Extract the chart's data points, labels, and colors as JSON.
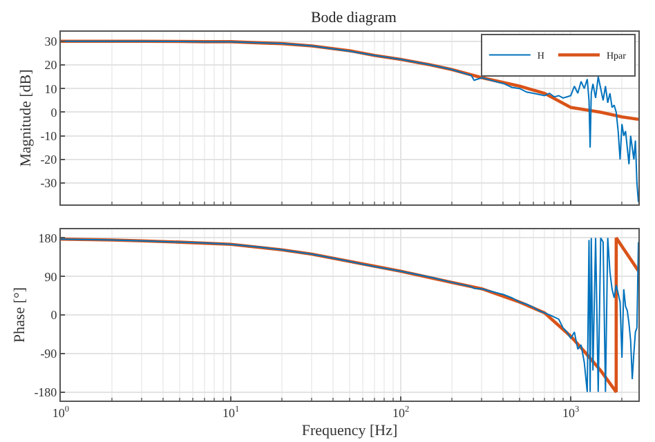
{
  "chart_data": [
    {
      "type": "line",
      "title": "Bode diagram",
      "ylabel": "Magnitude [dB]",
      "xlim": [
        1,
        2500
      ],
      "xticks": [
        {
          "value": 1,
          "label": null
        },
        {
          "value": 10,
          "label": null
        },
        {
          "value": 100,
          "label": null
        },
        {
          "value": 1000,
          "label": null
        }
      ],
      "ylim": [
        -39,
        34
      ],
      "yticks": [
        -30,
        -20,
        -10,
        0,
        10,
        20,
        30
      ],
      "log": "x",
      "grid": true,
      "legend": "top right",
      "tick_labels": "y",
      "marker": "none",
      "line_style": "solid",
      "series": [
        {
          "name": "H",
          "color": "#0072bd",
          "x": [
            1,
            2,
            3,
            5,
            7,
            10,
            15,
            20,
            30,
            50,
            70,
            100,
            150,
            200,
            260,
            270,
            300,
            380,
            400,
            450,
            500,
            550,
            600,
            650,
            700,
            750,
            800,
            850,
            900,
            950,
            1000,
            1050,
            1100,
            1150,
            1200,
            1250,
            1280,
            1300,
            1320,
            1350,
            1400,
            1450,
            1500,
            1550,
            1600,
            1650,
            1700,
            1750,
            1800,
            1850,
            1900,
            1950,
            2000,
            2050,
            2100,
            2150,
            2200,
            2250,
            2300,
            2350,
            2400,
            2450,
            2500
          ],
          "values": [
            30,
            30,
            30,
            29.9,
            29.8,
            29.8,
            29.3,
            29,
            28,
            25.8,
            24,
            22.3,
            20,
            18,
            15.5,
            13.5,
            14.6,
            12.5,
            12.2,
            10.5,
            10,
            8.5,
            8,
            7.5,
            7,
            8,
            6.5,
            7,
            6,
            6.5,
            7,
            11,
            8,
            13,
            10,
            14,
            5,
            -15,
            8,
            12,
            6,
            15,
            10,
            5,
            11,
            4,
            8,
            2,
            3,
            0,
            -8,
            -20,
            -5,
            -10,
            -8,
            -15,
            -22,
            -10,
            -15,
            -20,
            -12,
            -30,
            -38
          ]
        },
        {
          "name": "Hpar",
          "color": "#d95319",
          "x": [
            1,
            2,
            3,
            5,
            7,
            10,
            15,
            20,
            30,
            50,
            70,
            100,
            150,
            200,
            300,
            500,
            700,
            1000,
            1500,
            2000,
            2500
          ],
          "values": [
            30,
            30,
            30,
            29.9,
            29.8,
            29.8,
            29.3,
            29,
            28,
            26,
            24,
            22.3,
            20,
            18,
            14.6,
            11,
            8,
            2,
            0,
            -2,
            -3
          ]
        }
      ]
    },
    {
      "type": "line",
      "xlabel": "Frequency [Hz]",
      "ylabel": "Phase [°]",
      "xlim": [
        1,
        2500
      ],
      "xticks": [
        {
          "value": 1,
          "label": "10$^{0}$"
        },
        {
          "value": 10,
          "label": "10$^{1}$"
        },
        {
          "value": 100,
          "label": "10$^{2}$"
        },
        {
          "value": 1000,
          "label": "10$^{3}$"
        }
      ],
      "ylim": [
        -200,
        200
      ],
      "yticks": [
        -180,
        -90,
        0,
        90,
        180
      ],
      "log": "x",
      "grid": true,
      "legend": false,
      "marker": "none",
      "line_style": "solid",
      "series": [
        {
          "color": "#0072bd",
          "x": [
            1,
            2,
            3,
            5,
            7,
            10,
            15,
            20,
            30,
            50,
            70,
            100,
            150,
            200,
            260,
            270,
            300,
            380,
            400,
            450,
            500,
            550,
            600,
            650,
            700,
            750,
            800,
            850,
            900,
            950,
            1000,
            1050,
            1100,
            1150,
            1200,
            1250,
            1280,
            1300,
            1320,
            1350,
            1400,
            1450,
            1500,
            1550,
            1600,
            1650,
            1700,
            1750,
            1800,
            1850,
            1900,
            1950,
            2000,
            2050,
            2100,
            2150,
            2200,
            2250,
            2300,
            2350,
            2400,
            2450,
            2500
          ],
          "values": [
            177,
            175,
            173,
            170,
            168,
            165,
            158,
            152,
            142,
            125,
            113,
            102,
            88,
            76,
            66,
            62,
            61,
            50,
            48,
            40,
            30,
            25,
            18,
            10,
            5,
            0,
            -5,
            -10,
            -30,
            -40,
            -55,
            -40,
            -80,
            -70,
            -110,
            -180,
            175,
            -180,
            180,
            -130,
            180,
            -180,
            180,
            170,
            -180,
            180,
            100,
            60,
            40,
            70,
            50,
            30,
            -100,
            60,
            20,
            10,
            -20,
            -60,
            -150,
            -90,
            -40,
            -30,
            170
          ]
        },
        {
          "color": "#d95319",
          "x": [
            1,
            2,
            3,
            5,
            10,
            20,
            30,
            50,
            100,
            200,
            300,
            500,
            700,
            1000,
            1200,
            1500,
            1850,
            1851,
            2000,
            2500
          ],
          "values": [
            177,
            175,
            173,
            170,
            165,
            152,
            142,
            125,
            102,
            76,
            61,
            30,
            5,
            -50,
            -85,
            -130,
            -180,
            180,
            160,
            103
          ]
        }
      ]
    }
  ]
}
